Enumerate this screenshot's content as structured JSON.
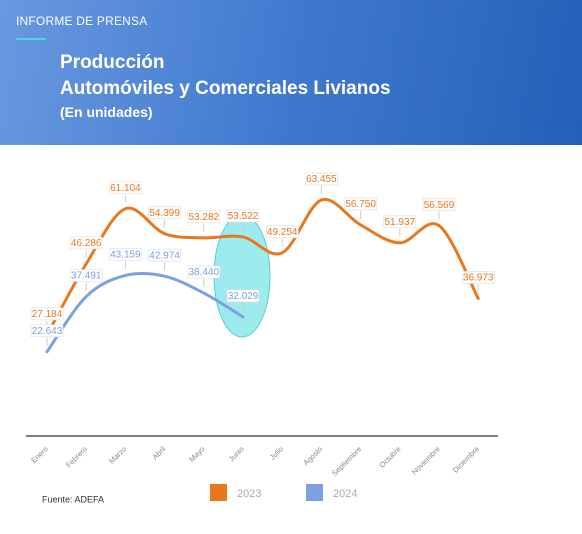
{
  "header": {
    "kicker": "INFORME DE PRENSA",
    "title": [
      "Producción",
      "Automóviles y Comerciales Livianos"
    ],
    "subtitle": "(En unidades)"
  },
  "chart_data": {
    "type": "line",
    "categories": [
      "Enero",
      "Febrero",
      "Marzo",
      "Abril",
      "Mayo",
      "Junio",
      "Julio",
      "Agosto",
      "Septiembre",
      "Octubre",
      "Noviembre",
      "Diciembre"
    ],
    "series": [
      {
        "name": "2023",
        "color": "#e8781e",
        "values": [
          27184,
          46286,
          61104,
          54399,
          53282,
          53522,
          49254,
          63455,
          56750,
          51937,
          56569,
          36973
        ],
        "value_labels": [
          "27.184",
          "46.286",
          "61.104",
          "54.399",
          "53.282",
          "53.522",
          "49.254",
          "63.455",
          "56.750",
          "51.937",
          "56.569",
          "36.973"
        ]
      },
      {
        "name": "2024",
        "color": "#7ba1e0",
        "values": [
          22643,
          37491,
          43159,
          42974,
          38440,
          32029,
          null,
          null,
          null,
          null,
          null,
          null
        ],
        "value_labels": [
          "22.643",
          "37.491",
          "43.159",
          "42.974",
          "38.440",
          "32.029",
          null,
          null,
          null,
          null,
          null,
          null
        ]
      }
    ],
    "source": "Fuente: ADEFA"
  }
}
